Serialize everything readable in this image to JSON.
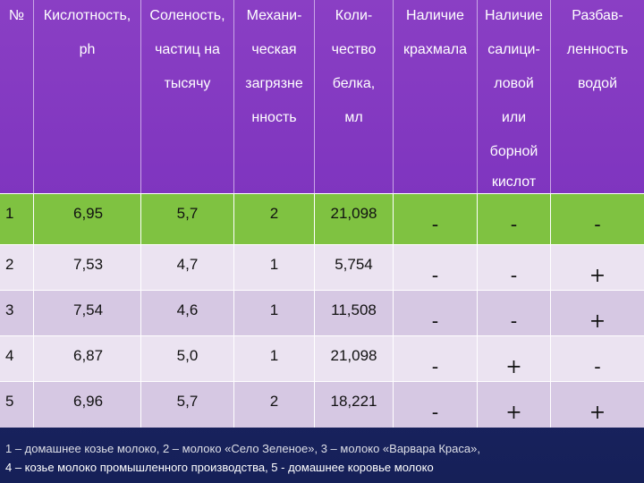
{
  "headers": [
    {
      "lines": [
        "№",
        "",
        "",
        ""
      ]
    },
    {
      "lines": [
        "Кислотность,",
        "ph",
        "",
        ""
      ]
    },
    {
      "lines": [
        "Соленость,",
        "частиц на",
        "тысячу",
        ""
      ]
    },
    {
      "lines": [
        "Механи-",
        "ческая",
        "загрязне",
        "нность"
      ]
    },
    {
      "lines": [
        "Коли-",
        "чество",
        "белка,",
        "мл"
      ]
    },
    {
      "lines": [
        "Наличие",
        "крахмала",
        "",
        ""
      ]
    },
    {
      "lines": [
        "Наличие",
        "салици-",
        "ловой",
        "или",
        "борной",
        "кислот"
      ]
    },
    {
      "lines": [
        "Разбав-",
        "ленность",
        "водой",
        ""
      ]
    }
  ],
  "rows": [
    {
      "num": "1",
      "ph": "6,95",
      "salt": "5,7",
      "mech": "2",
      "protein": "21,098",
      "starch": "-",
      "acid": "-",
      "water": "-"
    },
    {
      "num": "2",
      "ph": "7,53",
      "salt": "4,7",
      "mech": "1",
      "protein": "5,754",
      "starch": "-",
      "acid": "-",
      "water": "+"
    },
    {
      "num": "3",
      "ph": "7,54",
      "salt": "4,6",
      "mech": "1",
      "protein": "11,508",
      "starch": "-",
      "acid": "-",
      "water": "+"
    },
    {
      "num": "4",
      "ph": "6,87",
      "salt": "5,0",
      "mech": "1",
      "protein": "21,098",
      "starch": "-",
      "acid": "+",
      "water": "-"
    },
    {
      "num": "5",
      "ph": "6,96",
      "salt": "5,7",
      "mech": "2",
      "protein": "18,221",
      "starch": "-",
      "acid": "+",
      "water": "+"
    }
  ],
  "footer": {
    "line1": "1 – домашнее козье молоко, 2 – молоко «Село Зеленое», 3 – молоко «Варвара Краса»,",
    "line2": "4 – козье молоко промышленного производства, 5  - домашнее коровье молоко"
  }
}
